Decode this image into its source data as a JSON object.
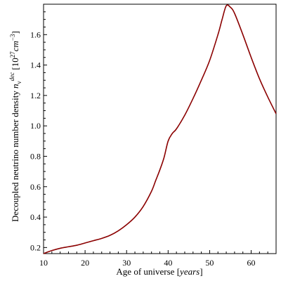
{
  "chart_data": {
    "type": "line",
    "xlabel": "Age of universe",
    "xlabel_unit": "years",
    "ylabel_text": "Decoupled neutrino number density",
    "ylabel_symbol": "n",
    "ylabel_sub": "ν",
    "ylabel_sup": "dec",
    "ylabel_unit_prefix": "10",
    "ylabel_unit_exp": "27",
    "ylabel_unit_cm": "cm",
    "ylabel_unit_cm_exp": "−3",
    "xlim": [
      10,
      66
    ],
    "ylim": [
      0.16,
      1.8
    ],
    "x_ticks": [
      10,
      20,
      30,
      40,
      50,
      60
    ],
    "x_tick_labels": [
      "10",
      "20",
      "30",
      "40",
      "50",
      "60"
    ],
    "y_ticks": [
      0.2,
      0.4,
      0.6,
      0.8,
      1.0,
      1.2,
      1.4,
      1.6
    ],
    "y_tick_labels": [
      "0.2",
      "0.4",
      "0.6",
      "0.8",
      "1.0",
      "1.2",
      "1.4",
      "1.6"
    ],
    "grid": false,
    "line_color": "#8b0000",
    "series": [
      {
        "x": [
          10,
          12,
          14,
          16,
          18,
          20,
          22,
          24,
          26,
          28,
          30,
          32,
          34,
          36,
          37,
          38,
          39,
          40,
          41,
          42,
          44,
          46,
          48,
          50,
          52,
          53,
          54,
          55,
          56,
          58,
          60,
          62,
          64,
          66
        ],
        "y": [
          0.16,
          0.18,
          0.195,
          0.205,
          0.215,
          0.23,
          0.245,
          0.26,
          0.28,
          0.31,
          0.35,
          0.4,
          0.47,
          0.57,
          0.64,
          0.71,
          0.79,
          0.9,
          0.95,
          0.98,
          1.07,
          1.18,
          1.3,
          1.43,
          1.6,
          1.7,
          1.79,
          1.78,
          1.74,
          1.6,
          1.45,
          1.31,
          1.19,
          1.08
        ]
      }
    ]
  }
}
